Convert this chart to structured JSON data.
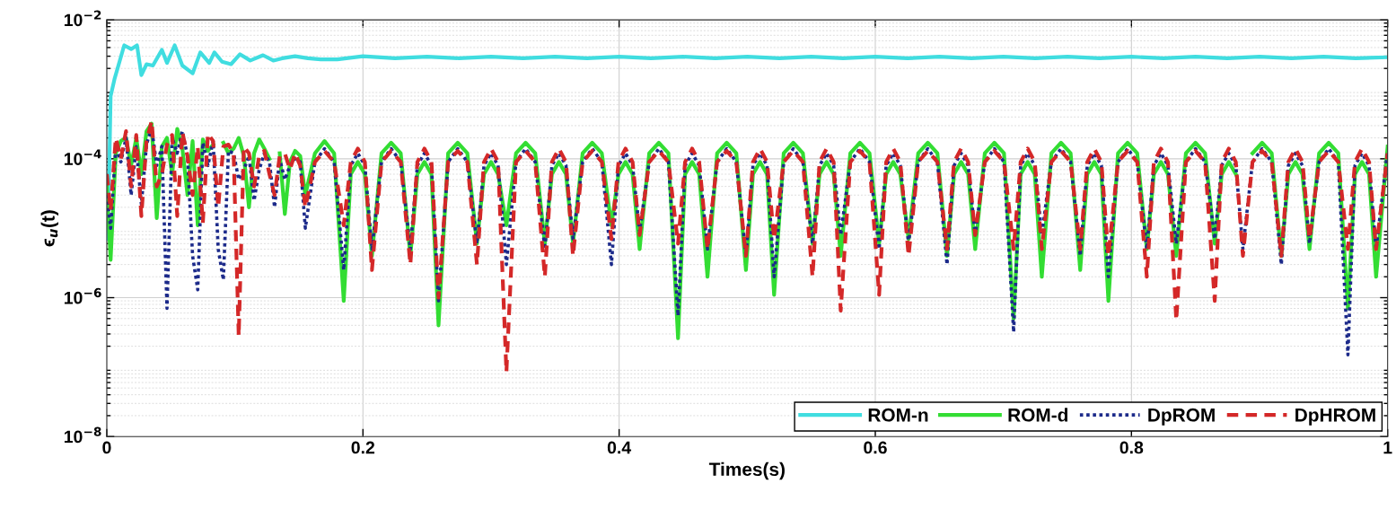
{
  "chart_data": {
    "type": "line",
    "xlabel": "Times(s)",
    "ylabel": "ϵ$_{u}$(t)",
    "log": "y",
    "grid": true,
    "legend": "bottom right",
    "xlim": [
      0,
      1
    ],
    "xticks": [
      0,
      0.2,
      0.4,
      0.6,
      0.8,
      1
    ],
    "ylim": [
      1e-08,
      0.01
    ],
    "yticks": [
      {
        "value": 1e-08,
        "label": "10$^{−8}$"
      },
      {
        "value": 1e-06,
        "label": "10$^{−6}$"
      },
      {
        "value": 0.0001,
        "label": "10$^{−4}$"
      },
      {
        "value": 0.01,
        "label": "10$^{−2}$"
      }
    ],
    "x": [
      0,
      0.003,
      0.007,
      0.011,
      0.015,
      0.019,
      0.023,
      0.027,
      0.031,
      0.035,
      0.039,
      0.043,
      0.047,
      0.051,
      0.055,
      0.059,
      0.063,
      0.067,
      0.071,
      0.075,
      0.079,
      0.083,
      0.087,
      0.091,
      0.095,
      0.099,
      0.103,
      0.107,
      0.111,
      0.115,
      0.119,
      0.123,
      0.127,
      0.131,
      0.135,
      0.139,
      0.143,
      0.147,
      0.151,
      0.155,
      0.1625,
      0.17,
      0.1775,
      0.185,
      0.1905,
      0.196,
      0.2015,
      0.207,
      0.2145,
      0.222,
      0.2295,
      0.237,
      0.2425,
      0.248,
      0.2535,
      0.259,
      0.2665,
      0.274,
      0.2815,
      0.289,
      0.2945,
      0.3,
      0.3055,
      0.312,
      0.3195,
      0.327,
      0.3345,
      0.342,
      0.3475,
      0.353,
      0.3585,
      0.364,
      0.3715,
      0.379,
      0.3865,
      0.394,
      0.3995,
      0.405,
      0.4105,
      0.416,
      0.4235,
      0.431,
      0.4385,
      0.446,
      0.4515,
      0.457,
      0.4625,
      0.469,
      0.4765,
      0.484,
      0.4915,
      0.499,
      0.5045,
      0.51,
      0.5155,
      0.521,
      0.5285,
      0.536,
      0.5435,
      0.551,
      0.5565,
      0.562,
      0.5675,
      0.573,
      0.5805,
      0.588,
      0.5955,
      0.603,
      0.6085,
      0.614,
      0.6195,
      0.626,
      0.6335,
      0.641,
      0.6485,
      0.656,
      0.6615,
      0.667,
      0.6725,
      0.678,
      0.6855,
      0.693,
      0.7005,
      0.708,
      0.7135,
      0.719,
      0.7245,
      0.73,
      0.7375,
      0.745,
      0.7525,
      0.76,
      0.7655,
      0.771,
      0.7765,
      0.782,
      0.7895,
      0.797,
      0.8045,
      0.812,
      0.8175,
      0.823,
      0.8285,
      0.835,
      0.8425,
      0.85,
      0.8575,
      0.865,
      0.8705,
      0.876,
      0.8815,
      0.887,
      0.8945,
      0.902,
      0.9095,
      0.917,
      0.9225,
      0.928,
      0.9335,
      0.939,
      0.9465,
      0.954,
      0.9615,
      0.969,
      0.9745,
      0.98,
      0.9855,
      0.991,
      1.0
    ],
    "series": [
      {
        "name": "ROM-n",
        "color": "#40dde0",
        "line_style": "solid",
        "x": [
          0,
          0.002,
          0.003,
          0.006,
          0.0136,
          0.019,
          0.0236,
          0.027,
          0.031,
          0.036,
          0.043,
          0.047,
          0.053,
          0.059,
          0.067,
          0.073,
          0.08,
          0.084,
          0.09,
          0.097,
          0.104,
          0.112,
          0.122,
          0.13,
          0.137,
          0.147,
          0.157,
          0.167,
          0.18,
          0.2,
          0.225,
          0.25,
          0.275,
          0.3,
          0.325,
          0.35,
          0.375,
          0.4,
          0.425,
          0.45,
          0.475,
          0.5,
          0.525,
          0.55,
          0.575,
          0.6,
          0.625,
          0.65,
          0.675,
          0.7,
          0.725,
          0.75,
          0.775,
          0.8,
          0.825,
          0.85,
          0.875,
          0.9,
          0.925,
          0.95,
          0.975,
          1.0
        ],
        "values": [
          7e-06,
          8e-05,
          0.0008,
          0.0014,
          0.0043,
          0.0038,
          0.0043,
          0.0016,
          0.0023,
          0.0022,
          0.0037,
          0.0024,
          0.0043,
          0.0022,
          0.0017,
          0.0034,
          0.0024,
          0.0034,
          0.0025,
          0.0023,
          0.0032,
          0.0026,
          0.0031,
          0.0026,
          0.0028,
          0.003,
          0.0028,
          0.0027,
          0.0027,
          0.003,
          0.0028,
          0.00295,
          0.0028,
          0.00295,
          0.0028,
          0.00295,
          0.0028,
          0.00295,
          0.0028,
          0.00295,
          0.0028,
          0.00295,
          0.0028,
          0.00295,
          0.0028,
          0.00295,
          0.0028,
          0.00295,
          0.0028,
          0.00295,
          0.0028,
          0.00295,
          0.0028,
          0.00295,
          0.0028,
          0.00295,
          0.0028,
          0.00295,
          0.0028,
          0.00295,
          0.0028,
          0.0029
        ]
      },
      {
        "name": "ROM-d",
        "color": "#33dd33",
        "line_style": "solid",
        "values": [
          4e-05,
          3.5e-06,
          0.00012,
          0.00018,
          0.0002,
          8e-05,
          0.0002,
          6e-05,
          0.00025,
          0.00032,
          1.4e-05,
          0.00015,
          0.0002,
          6e-05,
          0.00027,
          0.00014,
          3e-05,
          0.00018,
          1.1e-05,
          0.00019,
          0.00013,
          0.00016,
          null,
          0.00017,
          0.00012,
          0.00014,
          0.0002,
          0.00011,
          2e-05,
          0.00012,
          0.00019,
          0.00014,
          0.0001,
          null,
          0.00012,
          1.6e-05,
          9e-05,
          0.00013,
          0.00011,
          3e-05,
          0.00012,
          0.00018,
          0.00012,
          9e-07,
          6e-05,
          9e-05,
          6e-05,
          4e-06,
          0.00012,
          0.00017,
          0.00012,
          4e-06,
          6e-05,
          9e-05,
          6e-05,
          4e-07,
          0.00012,
          0.00017,
          0.00012,
          6e-06,
          6e-05,
          9e-05,
          6e-05,
          1.1e-05,
          0.00012,
          0.00017,
          0.00012,
          6e-06,
          6e-05,
          9e-05,
          6e-05,
          6e-06,
          0.00012,
          0.00017,
          0.00012,
          1.1e-05,
          6e-05,
          9e-05,
          6e-05,
          5e-06,
          0.00012,
          0.00017,
          0.00012,
          2.6e-07,
          6e-05,
          9e-05,
          6e-05,
          2e-06,
          0.00012,
          0.00017,
          0.00012,
          2.5e-06,
          6e-05,
          9e-05,
          6e-05,
          1.1e-06,
          0.00012,
          0.00017,
          0.00012,
          6e-06,
          6e-05,
          9e-05,
          6e-05,
          4e-06,
          0.00012,
          0.00017,
          0.00012,
          6e-06,
          6e-05,
          9e-05,
          6e-05,
          7e-06,
          0.00012,
          0.00017,
          0.00012,
          4e-06,
          6e-05,
          9e-05,
          6e-05,
          5e-06,
          0.00012,
          0.00017,
          0.00012,
          5e-07,
          6e-05,
          9e-05,
          6e-05,
          2e-06,
          0.00012,
          0.00017,
          0.00012,
          2.5e-06,
          6e-05,
          9e-05,
          6e-05,
          9e-07,
          0.00012,
          0.00017,
          0.00012,
          5e-06,
          6e-05,
          9e-05,
          6e-05,
          4e-06,
          0.00012,
          0.00017,
          0.00012,
          6e-06,
          6e-05,
          9e-05,
          6e-05,
          null,
          0.00012,
          0.00017,
          0.00012,
          4e-06,
          6e-05,
          9e-05,
          6e-05,
          5e-06,
          0.00012,
          0.00017,
          0.00012,
          7e-07,
          6e-05,
          9e-05,
          6e-05,
          2e-06,
          0.00015
        ]
      },
      {
        "name": "DpROM",
        "color": "#1c2a8a",
        "line_style": "dotted",
        "values": [
          3e-05,
          1e-05,
          0.00015,
          9e-05,
          0.0002,
          3e-05,
          0.00015,
          2.2e-05,
          0.00016,
          0.00028,
          8e-05,
          0.00015,
          7e-07,
          0.0002,
          0.00012,
          0.00025,
          0.00011,
          4e-06,
          1.3e-06,
          0.00017,
          8e-05,
          0.00018,
          5e-06,
          1.8e-06,
          0.00013,
          0.00012,
          5e-05,
          7e-05,
          0.00011,
          2.5e-05,
          7e-05,
          0.00012,
          9e-05,
          2e-05,
          0.0001,
          5e-05,
          8e-05,
          0.0001,
          9e-05,
          1e-05,
          9e-05,
          0.00014,
          9e-05,
          2.5e-06,
          8e-05,
          0.00012,
          8e-05,
          5e-06,
          9e-05,
          0.00014,
          9e-05,
          5e-06,
          8e-05,
          0.00012,
          8e-05,
          9e-07,
          9e-05,
          0.00014,
          9e-05,
          6e-06,
          8e-05,
          0.00012,
          8e-05,
          3e-06,
          9e-05,
          0.00014,
          9e-05,
          5e-06,
          8e-05,
          0.00012,
          8e-05,
          7e-06,
          9e-05,
          0.00014,
          9e-05,
          3e-06,
          8e-05,
          0.00012,
          8e-05,
          9e-06,
          9e-05,
          0.00014,
          9e-05,
          5.5e-07,
          8e-05,
          0.00012,
          8e-05,
          5e-06,
          9e-05,
          0.00014,
          9e-05,
          4e-06,
          8e-05,
          0.00012,
          8e-05,
          2e-06,
          9e-05,
          0.00014,
          9e-05,
          6e-06,
          8e-05,
          0.00012,
          8e-05,
          8e-06,
          9e-05,
          0.00014,
          9e-05,
          5e-06,
          8e-05,
          0.00012,
          8e-05,
          6e-06,
          9e-05,
          0.00014,
          9e-05,
          3e-06,
          8e-05,
          0.00012,
          8e-05,
          8e-06,
          9e-05,
          0.00014,
          9e-05,
          3.2e-07,
          8e-05,
          0.00012,
          8e-05,
          8e-06,
          9e-05,
          0.00014,
          9e-05,
          4e-06,
          8e-05,
          0.00012,
          8e-05,
          2e-06,
          9e-05,
          0.00014,
          9e-05,
          5e-06,
          8e-05,
          0.00012,
          8e-05,
          6e-06,
          9e-05,
          0.00014,
          9e-05,
          7e-06,
          8e-05,
          0.00012,
          8e-05,
          5e-06,
          9e-05,
          0.00014,
          9e-05,
          3e-06,
          8e-05,
          0.00012,
          8e-05,
          6e-06,
          9e-05,
          0.00014,
          9e-05,
          1.5e-07,
          8e-05,
          0.00012,
          8e-05,
          5e-06,
          0.00013
        ]
      },
      {
        "name": "DpHROM",
        "color": "#d42828",
        "line_style": "dashed",
        "values": [
          6e-05,
          1.8e-05,
          0.0002,
          0.0001,
          0.00025,
          4e-05,
          0.00022,
          1.5e-05,
          0.00018,
          0.00035,
          4e-05,
          6e-05,
          0.00016,
          0.00022,
          1.5e-05,
          0.00024,
          0.00011,
          3e-05,
          0.00015,
          1.2e-05,
          0.00023,
          0.00018,
          2e-05,
          0.00015,
          0.00016,
          0.00012,
          2.8e-07,
          0.00015,
          0.00012,
          4e-05,
          0.00011,
          0.00013,
          6e-05,
          3e-05,
          0.00011,
          0.00012,
          7e-05,
          0.00012,
          8e-05,
          2e-05,
          9e-05,
          0.00013,
          9e-05,
          1.1e-05,
          9e-05,
          0.00014,
          9e-05,
          2.5e-06,
          9e-05,
          0.00013,
          9e-05,
          3e-06,
          9e-05,
          0.00014,
          9e-05,
          1e-06,
          9e-05,
          0.00013,
          9e-05,
          3e-06,
          9e-05,
          0.00014,
          9e-05,
          8.5e-08,
          9e-05,
          0.00013,
          9e-05,
          2e-06,
          9e-05,
          0.00014,
          9e-05,
          4e-06,
          9e-05,
          0.00013,
          9e-05,
          7e-06,
          9e-05,
          0.00014,
          9e-05,
          8e-06,
          9e-05,
          0.00013,
          9e-05,
          6e-06,
          9e-05,
          0.00014,
          9e-05,
          5e-06,
          9e-05,
          0.00013,
          9e-05,
          4e-06,
          9e-05,
          0.00014,
          9e-05,
          7e-06,
          9e-05,
          0.00013,
          9e-05,
          2e-06,
          9e-05,
          0.00014,
          9e-05,
          6.5e-07,
          9e-05,
          0.00013,
          9e-05,
          1.1e-06,
          9e-05,
          0.00014,
          9e-05,
          4e-06,
          9e-05,
          0.00013,
          9e-05,
          5e-06,
          9e-05,
          0.00014,
          9e-05,
          8e-06,
          9e-05,
          0.00013,
          9e-05,
          5e-06,
          9e-05,
          0.00014,
          9e-05,
          5e-06,
          9e-05,
          0.00013,
          9e-05,
          5e-06,
          9e-05,
          0.00014,
          9e-05,
          4e-06,
          9e-05,
          0.00013,
          9e-05,
          2e-06,
          9e-05,
          0.00014,
          9e-05,
          4.7e-07,
          9e-05,
          0.00013,
          9e-05,
          9e-07,
          9e-05,
          0.00014,
          9e-05,
          4e-06,
          9e-05,
          0.00013,
          9e-05,
          4e-06,
          9e-05,
          0.00014,
          9e-05,
          7e-06,
          9e-05,
          0.00013,
          9e-05,
          5e-06,
          9e-05,
          0.00014,
          9e-05,
          5e-06,
          0.00012
        ]
      }
    ]
  }
}
